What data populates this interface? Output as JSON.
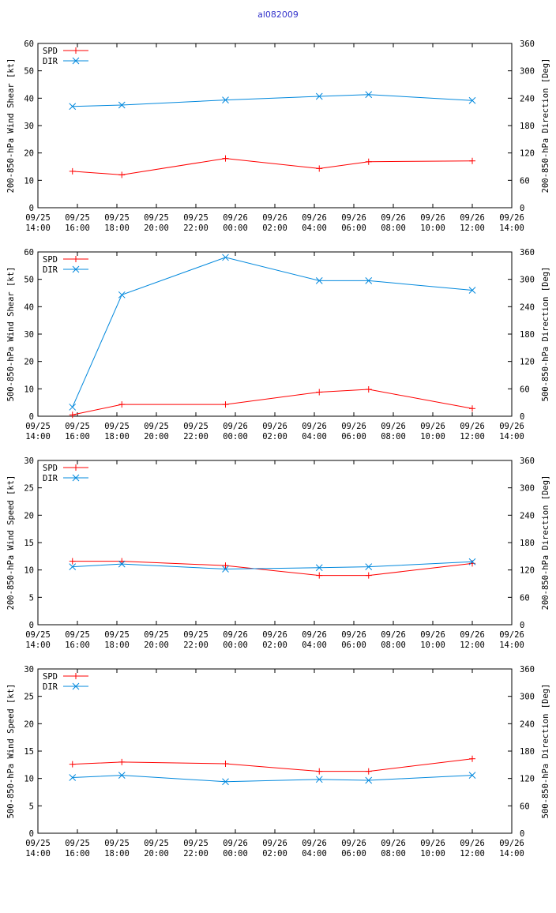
{
  "page_title": "al082009",
  "legend": {
    "spd": "SPD",
    "dir": "DIR"
  },
  "colors": {
    "spd": "#ff0000",
    "dir": "#0088dd",
    "axis": "#000000"
  },
  "x_ticks": [
    [
      "09/25",
      "14:00"
    ],
    [
      "09/25",
      "16:00"
    ],
    [
      "09/25",
      "18:00"
    ],
    [
      "09/25",
      "20:00"
    ],
    [
      "09/25",
      "22:00"
    ],
    [
      "09/26",
      "00:00"
    ],
    [
      "09/26",
      "02:00"
    ],
    [
      "09/26",
      "04:00"
    ],
    [
      "09/26",
      "06:00"
    ],
    [
      "09/26",
      "08:00"
    ],
    [
      "09/26",
      "10:00"
    ],
    [
      "09/26",
      "12:00"
    ],
    [
      "09/26",
      "14:00"
    ]
  ],
  "chart_data": [
    {
      "type": "line",
      "ylabel": "200-850-hPa Wind Shear [kt]",
      "y2label": "200-850-hPa Direction [Deg]",
      "ylim": [
        0,
        60
      ],
      "y2lim": [
        0,
        360
      ],
      "yticks": [
        0,
        10,
        20,
        30,
        40,
        50,
        60
      ],
      "y2ticks": [
        0,
        60,
        120,
        180,
        240,
        300,
        360
      ],
      "x": [
        "09/25 15:45",
        "09/25 18:15",
        "09/25 23:30",
        "09/26 04:15",
        "09/26 06:45",
        "09/26 12:00"
      ],
      "series": [
        {
          "name": "SPD",
          "axis": "left",
          "values": [
            13.3,
            12.0,
            18.0,
            14.3,
            16.8,
            17.1
          ]
        },
        {
          "name": "DIR",
          "axis": "right",
          "values": [
            222,
            225,
            236,
            244,
            248,
            235
          ]
        }
      ]
    },
    {
      "type": "line",
      "ylabel": "500-850-hPa Wind Shear [kt]",
      "y2label": "500-850-hPa Direction [Deg]",
      "ylim": [
        0,
        60
      ],
      "y2lim": [
        0,
        360
      ],
      "yticks": [
        0,
        10,
        20,
        30,
        40,
        50,
        60
      ],
      "y2ticks": [
        0,
        60,
        120,
        180,
        240,
        300,
        360
      ],
      "x": [
        "09/25 15:45",
        "09/25 18:15",
        "09/25 23:30",
        "09/26 04:15",
        "09/26 06:45",
        "09/26 12:00"
      ],
      "series": [
        {
          "name": "SPD",
          "axis": "left",
          "values": [
            0.5,
            4.3,
            4.3,
            8.8,
            9.8,
            2.8
          ]
        },
        {
          "name": "DIR",
          "axis": "right",
          "values": [
            20,
            266,
            348,
            297,
            297,
            276
          ]
        }
      ]
    },
    {
      "type": "line",
      "ylabel": "200-850-hPa Wind Speed [kt]",
      "y2label": "200-850-hPa Direction [Deg]",
      "ylim": [
        0,
        30
      ],
      "y2lim": [
        0,
        360
      ],
      "yticks": [
        0,
        5,
        10,
        15,
        20,
        25,
        30
      ],
      "y2ticks": [
        0,
        60,
        120,
        180,
        240,
        300,
        360
      ],
      "x": [
        "09/25 15:45",
        "09/25 18:15",
        "09/25 23:30",
        "09/26 04:15",
        "09/26 06:45",
        "09/26 12:00"
      ],
      "series": [
        {
          "name": "SPD",
          "axis": "left",
          "values": [
            11.6,
            11.6,
            10.8,
            9.0,
            9.0,
            11.2
          ]
        },
        {
          "name": "DIR",
          "axis": "right",
          "values": [
            127,
            133,
            122,
            125,
            127,
            138
          ]
        }
      ]
    },
    {
      "type": "line",
      "ylabel": "500-850-hPa Wind Speed [kt]",
      "y2label": "500-850-hPa Direction [Deg]",
      "ylim": [
        0,
        30
      ],
      "y2lim": [
        0,
        360
      ],
      "yticks": [
        0,
        5,
        10,
        15,
        20,
        25,
        30
      ],
      "y2ticks": [
        0,
        60,
        120,
        180,
        240,
        300,
        360
      ],
      "x": [
        "09/25 15:45",
        "09/25 18:15",
        "09/25 23:30",
        "09/26 04:15",
        "09/26 06:45",
        "09/26 12:00"
      ],
      "series": [
        {
          "name": "SPD",
          "axis": "left",
          "values": [
            12.6,
            13.0,
            12.7,
            11.3,
            11.3,
            13.6
          ]
        },
        {
          "name": "DIR",
          "axis": "right",
          "values": [
            122,
            127,
            113,
            118,
            116,
            127
          ]
        }
      ]
    }
  ]
}
